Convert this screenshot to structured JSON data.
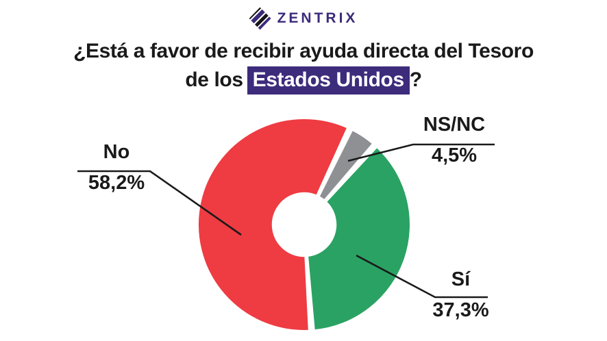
{
  "brand": {
    "name": "ZENTRIX",
    "logo_color": "#3d2b7c"
  },
  "title": {
    "line1": "¿Está a favor de recibir ayuda directa del Tesoro",
    "line2_prefix": "de los",
    "line2_highlight": "Estados Unidos",
    "line2_suffix": "?",
    "highlight_bg": "#3d2b7c",
    "highlight_text_color": "#ffffff"
  },
  "chart_data": {
    "type": "pie",
    "donut": true,
    "hole_ratio": 0.29,
    "title": "¿Está a favor de recibir ayuda directa del Tesoro de los Estados Unidos?",
    "direction": "clockwise",
    "start_angle_deg": 176,
    "legend": "external-callout-labels",
    "series": [
      {
        "label": "No",
        "value": 58.2,
        "display": "58,2%",
        "color": "#ee3c42"
      },
      {
        "label": "NS/NC",
        "value": 4.5,
        "display": "4,5%",
        "color": "#8e9093"
      },
      {
        "label": "Sí",
        "value": 37.3,
        "display": "37,3%",
        "color": "#2aa263"
      }
    ]
  }
}
